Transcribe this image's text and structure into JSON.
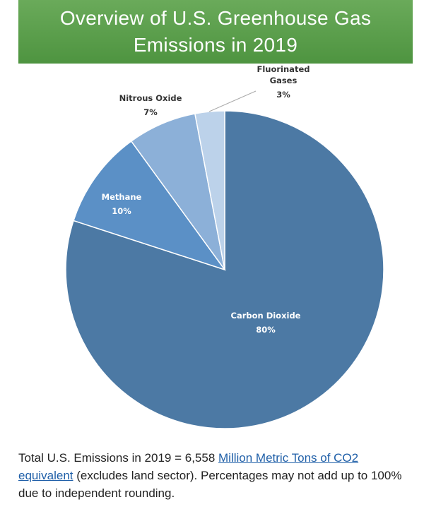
{
  "header": {
    "title_line1": "Overview of U.S. Greenhouse Gas",
    "title_line2": "Emissions in 2019",
    "background_color": "#5a9e4b"
  },
  "chart_data": {
    "type": "pie",
    "title": "Overview of U.S. Greenhouse Gas Emissions in 2019",
    "slices": [
      {
        "name": "Carbon Dioxide",
        "value": 80,
        "label": "80%",
        "color": "#4c79a4",
        "label_color": "#ffffff"
      },
      {
        "name": "Methane",
        "value": 10,
        "label": "10%",
        "color": "#5b90c6",
        "label_color": "#ffffff"
      },
      {
        "name": "Nitrous Oxide",
        "value": 7,
        "label": "7%",
        "color": "#8cb0d8",
        "label_color": "#333333"
      },
      {
        "name": "Fluorinated Gases",
        "name_lines": [
          "Fluorinated",
          "Gases"
        ],
        "value": 3,
        "label": "3%",
        "color": "#bcd2ea",
        "label_color": "#333333"
      }
    ]
  },
  "caption": {
    "prefix": "Total U.S. Emissions in 2019 = 6,558 ",
    "link_text_1": "Million Metric Tons of CO2",
    "link_text_2": "equivalent",
    "suffix": " (excludes land sector). Percentages may not add up to 100% due to independent rounding."
  }
}
